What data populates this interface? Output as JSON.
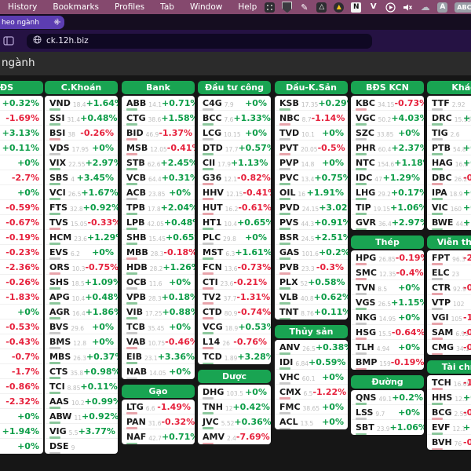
{
  "menubar": {
    "items": [
      "History",
      "Bookmarks",
      "Profiles",
      "Tab",
      "Window",
      "Help"
    ],
    "status_icons": [
      "screen-grid-icon",
      "shield-icon",
      "pencil-icon",
      "drive-icon",
      "warning-icon",
      "notion-icon",
      "v-icon",
      "play-circle-icon",
      "mute-icon",
      "cloud-icon",
      "input-a-icon",
      "input-abc-icon"
    ],
    "notion_letter": "N",
    "v_letter": "V",
    "a_label": "A",
    "abc_label": "ABC"
  },
  "browser": {
    "tab_title": "heo ngành",
    "tab_close": "✕",
    "new_tab": "+",
    "url": "ck.12h.biz"
  },
  "page": {
    "title": "ngành"
  },
  "colors": {
    "header_green": "#19a452",
    "up": "#0d9d48",
    "down": "#e6213c"
  },
  "board": {
    "columns": [
      {
        "sections": [
          {
            "title": "ĐS",
            "rows": [
              [
                "",
                "",
                "+0.32%"
              ],
              [
                "",
                "",
                "-1.69%"
              ],
              [
                "",
                "",
                "+3.13%"
              ],
              [
                "",
                "",
                "+0.11%"
              ],
              [
                "",
                "",
                "+0%"
              ],
              [
                "",
                "",
                "-2.7%"
              ],
              [
                "",
                "",
                "+0%"
              ],
              [
                "",
                "",
                "-0.59%"
              ],
              [
                "",
                "",
                "-0.67%"
              ],
              [
                "",
                "",
                "-0.19%"
              ],
              [
                "",
                "",
                "-0.23%"
              ],
              [
                "",
                "",
                "-2.36%"
              ],
              [
                "",
                "",
                "-0.26%"
              ],
              [
                "",
                "",
                "-1.83%"
              ],
              [
                "",
                "",
                "+0%"
              ],
              [
                "",
                "",
                "-0.53%"
              ],
              [
                "",
                "",
                "-0.43%"
              ],
              [
                "",
                "",
                "-0.7%"
              ],
              [
                "",
                "",
                "-1.7%"
              ],
              [
                "",
                "",
                "-0.86%"
              ],
              [
                "",
                "",
                "-2.32%"
              ],
              [
                "",
                "",
                "+0%"
              ],
              [
                "",
                "",
                "+1.94%"
              ],
              [
                "",
                "",
                "+0%"
              ]
            ]
          }
        ]
      },
      {
        "sections": [
          {
            "title": "C.Khoán",
            "rows": [
              [
                "VND",
                "18.4",
                "+1.64%"
              ],
              [
                "SSI",
                "31.4",
                "+0.48%"
              ],
              [
                "BSI",
                "38",
                "-0.26%"
              ],
              [
                "VDS",
                "17.95",
                "+0%"
              ],
              [
                "VIX",
                "22.55",
                "+2.97%"
              ],
              [
                "SBS",
                "4",
                "+3.45%"
              ],
              [
                "VCI",
                "26.5",
                "+1.67%"
              ],
              [
                "FTS",
                "32.8",
                "+0.92%"
              ],
              [
                "TVS",
                "15.05",
                "-0.33%"
              ],
              [
                "HCM",
                "23.6",
                "+1.29%"
              ],
              [
                "EVS",
                "6.2",
                "+0%"
              ],
              [
                "ORS",
                "10.3",
                "-0.75%"
              ],
              [
                "SHS",
                "18.5",
                "+1.09%"
              ],
              [
                "APG",
                "10.4",
                "+0.48%"
              ],
              [
                "AGR",
                "16.4",
                "+1.86%"
              ],
              [
                "BVS",
                "29.6",
                "+0%"
              ],
              [
                "BMS",
                "12.8",
                "+0%"
              ],
              [
                "MBS",
                "26.3",
                "+0.37%"
              ],
              [
                "CTS",
                "35.8",
                "+0.98%"
              ],
              [
                "TCI",
                "8.85",
                "+0.11%"
              ],
              [
                "AAS",
                "10.2",
                "+0.99%"
              ],
              [
                "ABW",
                "11",
                "+0.92%"
              ],
              [
                "VIG",
                "5.5",
                "+3.77%"
              ],
              [
                "DSE",
                "9",
                ""
              ]
            ]
          }
        ]
      },
      {
        "sections": [
          {
            "title": "Bank",
            "rows": [
              [
                "ABB",
                "14.1",
                "+0.71%"
              ],
              [
                "CTG",
                "38.6",
                "+1.58%"
              ],
              [
                "BID",
                "46.9",
                "-1.37%"
              ],
              [
                "MSB",
                "12.05",
                "-0.41%"
              ],
              [
                "STB",
                "62.6",
                "+2.45%"
              ],
              [
                "VCB",
                "64.4",
                "+0.31%"
              ],
              [
                "ACB",
                "23.85",
                "+0%"
              ],
              [
                "TPB",
                "17.8",
                "+2.04%"
              ],
              [
                "LPB",
                "42.05",
                "+0.48%"
              ],
              [
                "SHB",
                "15.45",
                "+0.65%"
              ],
              [
                "MBB",
                "28.3",
                "-0.18%"
              ],
              [
                "HDB",
                "28.2",
                "+1.26%"
              ],
              [
                "OCB",
                "11.6",
                "+0%"
              ],
              [
                "VPB",
                "28.3",
                "+0.18%"
              ],
              [
                "VIB",
                "17.25",
                "+0.88%"
              ],
              [
                "TCB",
                "35.45",
                "+0%"
              ],
              [
                "VAB",
                "10.75",
                "-0.46%"
              ],
              [
                "EIB",
                "23.1",
                "+3.36%"
              ],
              [
                "NAB",
                "14.05",
                "+0%"
              ]
            ]
          },
          {
            "title": "Gạo",
            "rows": [
              [
                "LTG",
                "6.6",
                "-1.49%"
              ],
              [
                "PAN",
                "31.6",
                "-0.32%"
              ],
              [
                "NAF",
                "42.7",
                "+0.71%"
              ]
            ]
          }
        ]
      },
      {
        "sections": [
          {
            "title": "Đầu tư công",
            "rows": [
              [
                "C4G",
                "7.9",
                "+0%"
              ],
              [
                "BCC",
                "7.6",
                "+1.33%"
              ],
              [
                "LCG",
                "10.15",
                "+0%"
              ],
              [
                "DTD",
                "17.7",
                "+0.57%"
              ],
              [
                "CII",
                "17.9",
                "+1.13%"
              ],
              [
                "G36",
                "12.1",
                "-0.82%"
              ],
              [
                "HHV",
                "12.15",
                "-0.41%"
              ],
              [
                "HUT",
                "16.2",
                "-0.61%"
              ],
              [
                "HT1",
                "10.4",
                "+0.65%"
              ],
              [
                "PLC",
                "29.8",
                "+0%"
              ],
              [
                "MST",
                "6.3",
                "+1.61%"
              ],
              [
                "FCN",
                "13.6",
                "-0.73%"
              ],
              [
                "CTI",
                "23.6",
                "-0.21%"
              ],
              [
                "TV2",
                "37.7",
                "-1.31%"
              ],
              [
                "CTD",
                "80.9",
                "-0.74%"
              ],
              [
                "VCG",
                "18.9",
                "+0.53%"
              ],
              [
                "L14",
                "26",
                "-0.76%"
              ],
              [
                "TCD",
                "1.89",
                "+3.28%"
              ]
            ]
          },
          {
            "title": "Dược",
            "rows": [
              [
                "DHG",
                "103.5",
                "+0%"
              ],
              [
                "TNH",
                "12",
                "+0.42%"
              ],
              [
                "JVC",
                "5.52",
                "+0.36%"
              ],
              [
                "AMV",
                "2.4",
                "-7.69%"
              ]
            ]
          }
        ]
      },
      {
        "sections": [
          {
            "title": "Dầu-K.Sản",
            "rows": [
              [
                "KSB",
                "17.35",
                "+0.29%"
              ],
              [
                "NBC",
                "8.7",
                "-1.14%"
              ],
              [
                "TVD",
                "10.1",
                "+0%"
              ],
              [
                "PVT",
                "20.05",
                "-0.5%"
              ],
              [
                "PVP",
                "14.8",
                "+0%"
              ],
              [
                "PVC",
                "13.4",
                "+0.75%"
              ],
              [
                "OIL",
                "16",
                "+1.91%"
              ],
              [
                "PVD",
                "24.15",
                "+3.02%"
              ],
              [
                "PVS",
                "44.3",
                "+0.91%"
              ],
              [
                "BSR",
                "24.5",
                "+2.51%"
              ],
              [
                "GAS",
                "101.6",
                "+0.2%"
              ],
              [
                "PVB",
                "23.3",
                "-0.3%"
              ],
              [
                "PLX",
                "52",
                "+0.58%"
              ],
              [
                "VLB",
                "40.8",
                "+0.62%"
              ],
              [
                "TNT",
                "8.76",
                "+0.11%"
              ]
            ]
          },
          {
            "title": "Thủy sản",
            "rows": [
              [
                "ANV",
                "26.5",
                "+0.38%"
              ],
              [
                "IDI",
                "6.84",
                "+0.59%"
              ],
              [
                "VHC",
                "60.1",
                "+0%"
              ],
              [
                "CMX",
                "6.5",
                "-1.22%"
              ],
              [
                "FMC",
                "38.65",
                "+0%"
              ],
              [
                "ACL",
                "13.5",
                "+0%"
              ]
            ]
          }
        ]
      },
      {
        "sections": [
          {
            "title": "BĐS KCN",
            "rows": [
              [
                "KBC",
                "34.15",
                "-0.73%"
              ],
              [
                "VGC",
                "50.2",
                "+4.03%"
              ],
              [
                "SZC",
                "33.85",
                "+0%"
              ],
              [
                "PHR",
                "60.4",
                "+2.37%"
              ],
              [
                "NTC",
                "154.6",
                "+1.18%"
              ],
              [
                "IDC",
                "47",
                "+1.29%"
              ],
              [
                "LHG",
                "29.2",
                "+0.17%"
              ],
              [
                "TIP",
                "19.15",
                "+1.06%"
              ],
              [
                "GVR",
                "36.4",
                "+2.97%"
              ]
            ]
          },
          {
            "title": "Thép",
            "rows": [
              [
                "HPG",
                "26.85",
                "-0.19%"
              ],
              [
                "SMC",
                "12.35",
                "-0.4%"
              ],
              [
                "TVN",
                "8.5",
                "+0%"
              ],
              [
                "VGS",
                "26.5",
                "+1.15%"
              ],
              [
                "NKG",
                "14.95",
                "+0%"
              ],
              [
                "HSG",
                "15.5",
                "-0.64%"
              ],
              [
                "TLH",
                "4.94",
                "+0%"
              ],
              [
                "BMP",
                "159",
                "-0.19%"
              ]
            ]
          },
          {
            "title": "Đường",
            "rows": [
              [
                "QNS",
                "49.1",
                "+0.2%"
              ],
              [
                "LSS",
                "9.7",
                "+0%"
              ],
              [
                "SBT",
                "23.9",
                "+1.06%"
              ]
            ]
          }
        ]
      },
      {
        "sections": [
          {
            "title": "Khác",
            "rows": [
              [
                "TTF",
                "2.92",
                ""
              ],
              [
                "DRC",
                "15.15",
                "+0"
              ],
              [
                "TIG",
                "2.6",
                ""
              ],
              [
                "PTB",
                "54.8",
                "+0"
              ],
              [
                "HAG",
                "16.6",
                "+0"
              ],
              [
                "DBC",
                "26.2",
                "-0"
              ],
              [
                "IPA",
                "18.9",
                "+0"
              ],
              [
                "VIC",
                "160",
                "+0"
              ],
              [
                "BWE",
                "44.5",
                "+1"
              ]
            ]
          },
          {
            "title": "Viễn thông",
            "rows": [
              [
                "FPT",
                "96.3",
                "-2"
              ],
              [
                "ELC",
                "23",
                ""
              ],
              [
                "CTR",
                "92.9",
                "-0"
              ],
              [
                "VTP",
                "102",
                ""
              ],
              [
                "VGI",
                "105",
                "-1"
              ],
              [
                "SAM",
                "6.95",
                "-0"
              ],
              [
                "CMG",
                "34.1",
                "-0"
              ]
            ]
          },
          {
            "title": "Tài chính",
            "rows": [
              [
                "TCH",
                "16.65",
                "-1"
              ],
              [
                "HHS",
                "12.3",
                "+0"
              ],
              [
                "BCG",
                "2.53",
                "-0"
              ],
              [
                "EVF",
                "12.1",
                "+5"
              ],
              [
                "BVH",
                "76",
                "-0"
              ]
            ]
          }
        ]
      }
    ]
  }
}
